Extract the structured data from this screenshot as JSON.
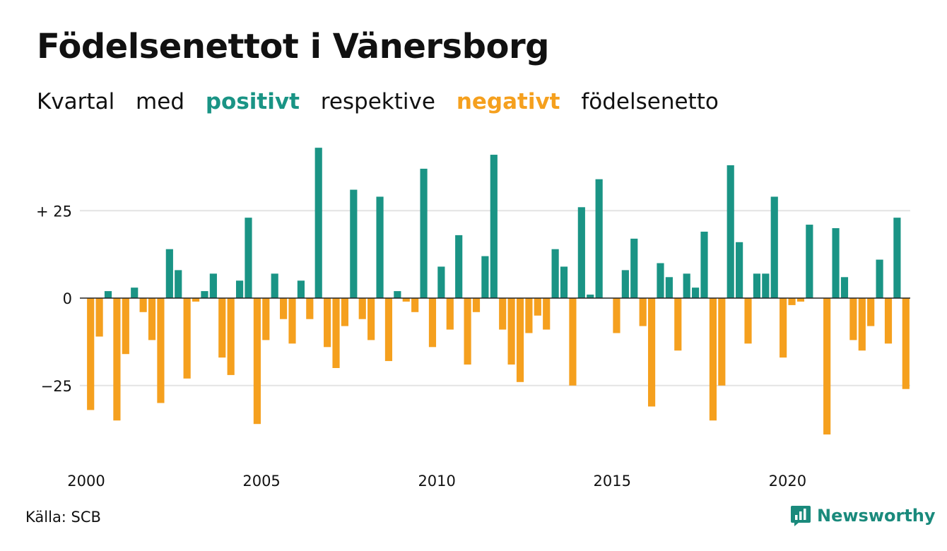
{
  "title": "Födelsenettot i Vänersborg",
  "subtitle": {
    "words": [
      "Kvartal",
      "med",
      "positivt",
      "respektive",
      "negativt",
      "födelsenetto"
    ]
  },
  "colors": {
    "positive": "#1a9485",
    "negative": "#f5a01e",
    "grid": "#e3e3e3",
    "baseline": "#222222"
  },
  "source": "Källa: SCB",
  "brand": {
    "name": "Newsworthy",
    "icon": "newsworthy-logo-icon"
  },
  "chart_data": {
    "type": "bar",
    "title": "Födelsenettot i Vänersborg",
    "xlabel": "",
    "ylabel": "",
    "ylim": [
      -45,
      45
    ],
    "yticks": [
      25,
      0,
      -25
    ],
    "ytick_labels": [
      "+ 25",
      "0",
      "−25"
    ],
    "x_tick_labels": [
      {
        "label": "2000",
        "index": 0
      },
      {
        "label": "2005",
        "index": 20
      },
      {
        "label": "2010",
        "index": 40
      },
      {
        "label": "2015",
        "index": 60
      },
      {
        "label": "2020",
        "index": 80
      }
    ],
    "grid": true,
    "frequency": "quarterly",
    "start": "2000 Q1",
    "values": [
      -32,
      -11,
      2,
      -35,
      -16,
      3,
      -4,
      -12,
      -30,
      14,
      8,
      -23,
      -1,
      2,
      7,
      -17,
      -22,
      5,
      23,
      -36,
      -12,
      7,
      -6,
      -13,
      5,
      -6,
      43,
      -14,
      -20,
      -8,
      31,
      -6,
      -12,
      29,
      -18,
      2,
      -1,
      -4,
      37,
      -14,
      9,
      -9,
      18,
      -19,
      -4,
      12,
      41,
      -9,
      -19,
      -24,
      -10,
      -5,
      -9,
      14,
      9,
      -25,
      26,
      1,
      34,
      0,
      -10,
      8,
      17,
      -8,
      -31,
      10,
      6,
      -15,
      7,
      3,
      19,
      -35,
      -25,
      38,
      16,
      -13,
      7,
      7,
      29,
      -17,
      -2,
      -1,
      21,
      0,
      -39,
      20,
      6,
      -12,
      -15,
      -8,
      11,
      -13,
      23,
      -26
    ]
  }
}
